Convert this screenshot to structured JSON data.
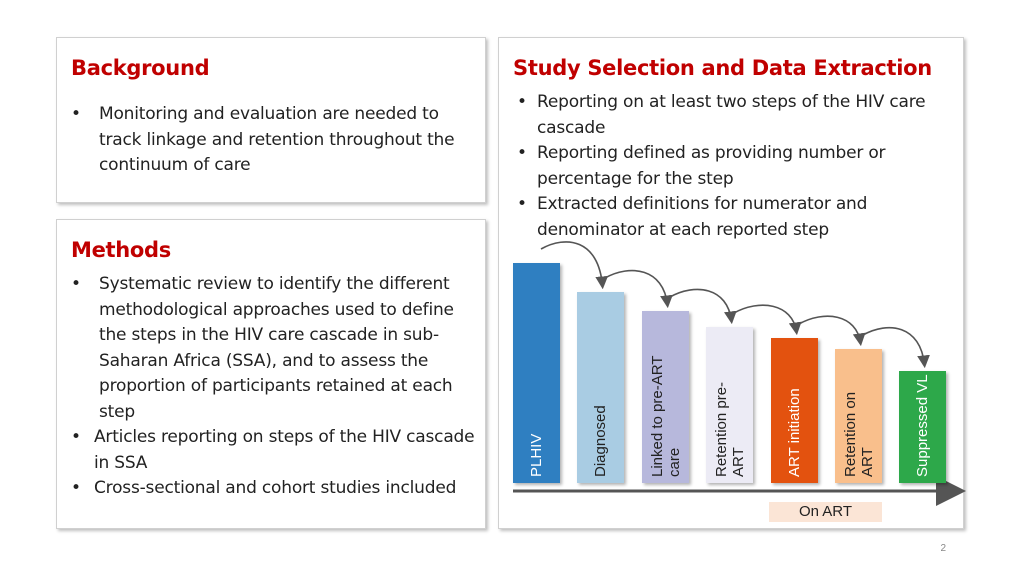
{
  "background": {
    "title": "Background",
    "bullets": [
      "Monitoring and evaluation are needed to track linkage and retention throughout the continuum of care"
    ]
  },
  "methods": {
    "title": "Methods",
    "bullets": [
      "Systematic review to identify the different methodological approaches used to define the steps in the HIV care cascade in sub-Saharan Africa (SSA), and to assess the proportion of participants retained at each step",
      "Articles reporting on steps of the HIV cascade in SSA",
      "Cross-sectional and cohort studies included"
    ]
  },
  "study": {
    "title": "Study Selection and Data Extraction",
    "bullets": [
      "Reporting on at least two steps of the HIV care cascade",
      "Reporting defined as providing number or percentage for the step",
      "Extracted definitions for numerator and denominator at each reported step"
    ]
  },
  "cascade": {
    "bars": [
      {
        "label": "PLHIV",
        "fill": "#2f7fc1",
        "text_color": "#ffffff",
        "level": 1.0
      },
      {
        "label": "Diagnosed",
        "fill": "#a9cce3",
        "text_color": "#222222",
        "level": 0.87
      },
      {
        "label": "Linked to pre-ART care",
        "fill": "#b7b8dc",
        "text_color": "#222222",
        "level": 0.78
      },
      {
        "label": "Retention pre-ART",
        "fill": "#ecebf5",
        "text_color": "#222222",
        "level": 0.71
      },
      {
        "label": "ART initiation",
        "fill": "#e3520f",
        "text_color": "#ffffff",
        "level": 0.66
      },
      {
        "label": "Retention on ART",
        "fill": "#f9bf8c",
        "text_color": "#222222",
        "level": 0.61
      },
      {
        "label": "Suppressed VL",
        "fill": "#2da84a",
        "text_color": "#ffffff",
        "level": 0.51
      }
    ],
    "on_art_label": "On ART"
  },
  "page_number": "2"
}
